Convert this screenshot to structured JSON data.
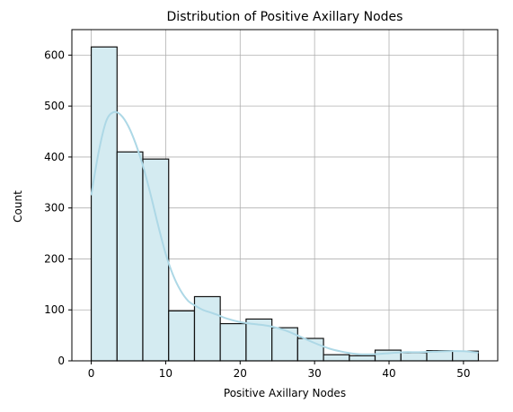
{
  "chart_data": {
    "type": "bar",
    "title": "Distribution of Positive Axillary Nodes",
    "xlabel": "Positive Axillary Nodes",
    "ylabel": "Count",
    "xlim": [
      -2.6,
      54.6
    ],
    "ylim": [
      0,
      650
    ],
    "xticks": [
      0,
      10,
      20,
      30,
      40,
      50
    ],
    "yticks": [
      0,
      100,
      200,
      300,
      400,
      500,
      600
    ],
    "grid": true,
    "bins": [
      {
        "start": 0.0,
        "end": 3.47,
        "value": 616
      },
      {
        "start": 3.47,
        "end": 6.93,
        "value": 410
      },
      {
        "start": 6.93,
        "end": 10.4,
        "value": 396
      },
      {
        "start": 10.4,
        "end": 13.87,
        "value": 98
      },
      {
        "start": 13.87,
        "end": 17.33,
        "value": 126
      },
      {
        "start": 17.33,
        "end": 20.8,
        "value": 73
      },
      {
        "start": 20.8,
        "end": 24.27,
        "value": 82
      },
      {
        "start": 24.27,
        "end": 27.73,
        "value": 65
      },
      {
        "start": 27.73,
        "end": 31.2,
        "value": 44
      },
      {
        "start": 31.2,
        "end": 34.67,
        "value": 12
      },
      {
        "start": 34.67,
        "end": 38.13,
        "value": 10
      },
      {
        "start": 38.13,
        "end": 41.6,
        "value": 21
      },
      {
        "start": 41.6,
        "end": 45.07,
        "value": 16
      },
      {
        "start": 45.07,
        "end": 48.53,
        "value": 20
      },
      {
        "start": 48.53,
        "end": 52.0,
        "value": 19
      }
    ],
    "kde": {
      "x": [
        0,
        1,
        2,
        3,
        4,
        5,
        6,
        7,
        8,
        9,
        10,
        11,
        12,
        13,
        14,
        15,
        16,
        17,
        18,
        20,
        22,
        24,
        26,
        28,
        30,
        32,
        34,
        36,
        38,
        40,
        42,
        44,
        46,
        48,
        50,
        52
      ],
      "y": [
        325,
        410,
        470,
        488,
        482,
        460,
        425,
        380,
        325,
        265,
        210,
        168,
        138,
        118,
        108,
        100,
        95,
        90,
        84,
        76,
        72,
        68,
        60,
        48,
        35,
        24,
        17,
        13,
        13,
        15,
        17,
        17,
        18,
        19,
        19,
        16
      ]
    },
    "colors": {
      "bar_fill": "#d4ebf1",
      "bar_edge": "#111111",
      "kde_line": "#add8e6",
      "grid": "#b0b0b0",
      "axis": "#000000"
    }
  }
}
